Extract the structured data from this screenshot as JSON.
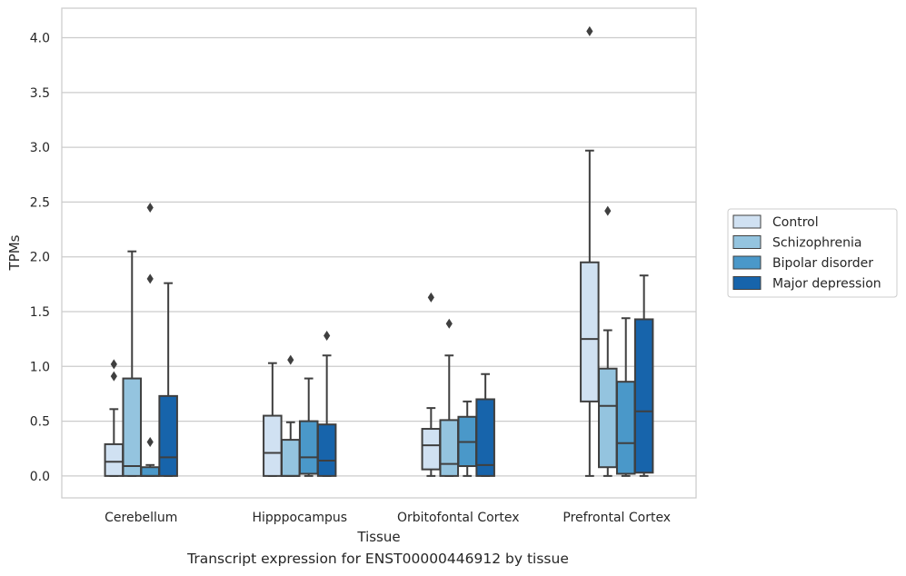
{
  "chart_data": {
    "type": "box",
    "xlabel": "Tissue",
    "ylabel": "TPMs",
    "caption": "Transcript expression for ENST00000446912 by tissue",
    "categories": [
      "Cerebellum",
      "Hipppocampus",
      "Orbitofontal Cortex",
      "Prefrontal Cortex"
    ],
    "ylim": [
      -0.2,
      4.27
    ],
    "yticks": [
      0.0,
      0.5,
      1.0,
      1.5,
      2.0,
      2.5,
      3.0,
      3.5,
      4.0
    ],
    "grid": "horizontal",
    "legend_position": "center-right",
    "series": [
      {
        "name": "Control",
        "color": "#d0e1f2",
        "boxes": [
          {
            "whislo": 0.0,
            "q1": 0.0,
            "med": 0.13,
            "q3": 0.29,
            "whishi": 0.61,
            "fliers": [
              0.91,
              1.02
            ]
          },
          {
            "whislo": 0.0,
            "q1": 0.0,
            "med": 0.21,
            "q3": 0.55,
            "whishi": 1.03,
            "fliers": []
          },
          {
            "whislo": 0.0,
            "q1": 0.06,
            "med": 0.28,
            "q3": 0.43,
            "whishi": 0.62,
            "fliers": [
              1.63
            ]
          },
          {
            "whislo": 0.0,
            "q1": 0.68,
            "med": 1.25,
            "q3": 1.95,
            "whishi": 2.97,
            "fliers": [
              4.06
            ]
          }
        ]
      },
      {
        "name": "Schizophrenia",
        "color": "#94c4df",
        "boxes": [
          {
            "whislo": 0.0,
            "q1": 0.0,
            "med": 0.09,
            "q3": 0.89,
            "whishi": 2.05,
            "fliers": []
          },
          {
            "whislo": 0.0,
            "q1": 0.0,
            "med": 0.0,
            "q3": 0.33,
            "whishi": 0.49,
            "fliers": [
              1.06
            ]
          },
          {
            "whislo": 0.0,
            "q1": 0.0,
            "med": 0.11,
            "q3": 0.51,
            "whishi": 1.1,
            "fliers": [
              1.39
            ]
          },
          {
            "whislo": 0.0,
            "q1": 0.08,
            "med": 0.64,
            "q3": 0.98,
            "whishi": 1.33,
            "fliers": [
              2.42
            ]
          }
        ]
      },
      {
        "name": "Bipolar disorder",
        "color": "#4a98c9",
        "boxes": [
          {
            "whislo": 0.0,
            "q1": 0.0,
            "med": 0.0,
            "q3": 0.08,
            "whishi": 0.1,
            "fliers": [
              0.31,
              1.8,
              2.45
            ]
          },
          {
            "whislo": 0.0,
            "q1": 0.02,
            "med": 0.17,
            "q3": 0.5,
            "whishi": 0.89,
            "fliers": []
          },
          {
            "whislo": 0.0,
            "q1": 0.09,
            "med": 0.31,
            "q3": 0.54,
            "whishi": 0.68,
            "fliers": []
          },
          {
            "whislo": 0.0,
            "q1": 0.02,
            "med": 0.3,
            "q3": 0.86,
            "whishi": 1.44,
            "fliers": []
          }
        ]
      },
      {
        "name": "Major depression",
        "color": "#1764ab",
        "boxes": [
          {
            "whislo": 0.0,
            "q1": 0.0,
            "med": 0.17,
            "q3": 0.73,
            "whishi": 1.76,
            "fliers": []
          },
          {
            "whislo": 0.0,
            "q1": 0.0,
            "med": 0.14,
            "q3": 0.47,
            "whishi": 1.1,
            "fliers": [
              1.28
            ]
          },
          {
            "whislo": 0.0,
            "q1": 0.0,
            "med": 0.1,
            "q3": 0.7,
            "whishi": 0.93,
            "fliers": []
          },
          {
            "whislo": 0.0,
            "q1": 0.03,
            "med": 0.59,
            "q3": 1.43,
            "whishi": 1.83,
            "fliers": []
          }
        ]
      }
    ]
  }
}
